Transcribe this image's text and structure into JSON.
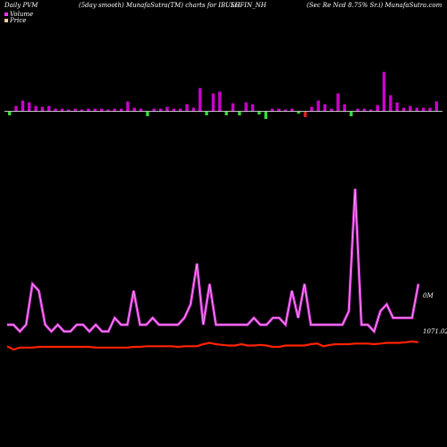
{
  "header": {
    "left": "Daily PVM",
    "center_left": "(5day smooth) MunafaSutra(TM) charts for IBULH",
    "center_right": "SGFIN_NH",
    "right": "(Sec Re   Ncd 8.75% Sr.i) MunafaSutra.com"
  },
  "legend": {
    "volume_label": "Volume",
    "price_label": "Price",
    "volume_color": "#ff33ff",
    "price_color": "#ffcc99"
  },
  "readouts": {
    "volume_value": "0M",
    "price_value": "1071.02"
  },
  "colors": {
    "background": "#000000",
    "bar_up": "#cc00cc",
    "bar_down": "#33dd33",
    "bar_red": "#dd2222",
    "volume_line": "#cc33cc",
    "volume_line_highlight": "#ffaaff",
    "price_line": "#ff2200",
    "baseline": "#ffffff"
  },
  "chart_data": {
    "type": "line",
    "series": [
      {
        "name": "Volume",
        "values": [
          3,
          3,
          2,
          3,
          9,
          8,
          3,
          2,
          3,
          2,
          2,
          3,
          3,
          2,
          3,
          2,
          2,
          4,
          3,
          3,
          8,
          3,
          3,
          4,
          3,
          3,
          3,
          3,
          4,
          6,
          12,
          3,
          9,
          3,
          3,
          3,
          3,
          3,
          3,
          4,
          3,
          3,
          4,
          4,
          3,
          8,
          4,
          9,
          3,
          3,
          3,
          3,
          3,
          3,
          5,
          23,
          3,
          3,
          2,
          5,
          6,
          4,
          4,
          4,
          4,
          9
        ]
      },
      {
        "name": "Price",
        "values": [
          1065,
          1060,
          1063,
          1063,
          1063,
          1064,
          1064,
          1064,
          1064,
          1064,
          1064,
          1064,
          1064,
          1064,
          1063,
          1063,
          1063,
          1063,
          1063,
          1063,
          1064,
          1064,
          1065,
          1065,
          1065,
          1065,
          1065,
          1064,
          1065,
          1065,
          1065,
          1068,
          1070,
          1068,
          1067,
          1066,
          1066,
          1068,
          1066,
          1066,
          1067,
          1066,
          1064,
          1064,
          1066,
          1066,
          1066,
          1066,
          1068,
          1069,
          1065,
          1067,
          1068,
          1068,
          1068,
          1069,
          1069,
          1069,
          1068,
          1069,
          1070,
          1070,
          1070,
          1071,
          1072,
          1071
        ]
      }
    ],
    "bars": [
      {
        "h": 4,
        "dir": "down"
      },
      {
        "h": 6,
        "dir": "up"
      },
      {
        "h": 12,
        "dir": "up"
      },
      {
        "h": 10,
        "dir": "up"
      },
      {
        "h": 6,
        "dir": "up"
      },
      {
        "h": 5,
        "dir": "up"
      },
      {
        "h": 6,
        "dir": "up"
      },
      {
        "h": 3,
        "dir": "up"
      },
      {
        "h": 3,
        "dir": "up"
      },
      {
        "h": 2,
        "dir": "up"
      },
      {
        "h": 3,
        "dir": "up"
      },
      {
        "h": 2,
        "dir": "up"
      },
      {
        "h": 3,
        "dir": "up"
      },
      {
        "h": 3,
        "dir": "up"
      },
      {
        "h": 3,
        "dir": "up"
      },
      {
        "h": 2,
        "dir": "up"
      },
      {
        "h": 3,
        "dir": "up"
      },
      {
        "h": 3,
        "dir": "up"
      },
      {
        "h": 11,
        "dir": "up"
      },
      {
        "h": 4,
        "dir": "up"
      },
      {
        "h": 3,
        "dir": "up"
      },
      {
        "h": 5,
        "dir": "down"
      },
      {
        "h": 3,
        "dir": "up"
      },
      {
        "h": 3,
        "dir": "up"
      },
      {
        "h": 5,
        "dir": "up"
      },
      {
        "h": 3,
        "dir": "up"
      },
      {
        "h": 3,
        "dir": "up"
      },
      {
        "h": 8,
        "dir": "up"
      },
      {
        "h": 4,
        "dir": "up"
      },
      {
        "h": 26,
        "dir": "up"
      },
      {
        "h": 4,
        "dir": "down"
      },
      {
        "h": 20,
        "dir": "up"
      },
      {
        "h": 22,
        "dir": "up"
      },
      {
        "h": 4,
        "dir": "down"
      },
      {
        "h": 9,
        "dir": "up"
      },
      {
        "h": 4,
        "dir": "down"
      },
      {
        "h": 10,
        "dir": "up"
      },
      {
        "h": 8,
        "dir": "up"
      },
      {
        "h": 3,
        "dir": "down"
      },
      {
        "h": 8,
        "dir": "down"
      },
      {
        "h": 3,
        "dir": "up"
      },
      {
        "h": 3,
        "dir": "up"
      },
      {
        "h": 2,
        "dir": "up"
      },
      {
        "h": 3,
        "dir": "up"
      },
      {
        "h": 2,
        "dir": "down"
      },
      {
        "h": 6,
        "dir": "red"
      },
      {
        "h": 5,
        "dir": "up"
      },
      {
        "h": 12,
        "dir": "up"
      },
      {
        "h": 8,
        "dir": "up"
      },
      {
        "h": 3,
        "dir": "up"
      },
      {
        "h": 20,
        "dir": "up"
      },
      {
        "h": 8,
        "dir": "up"
      },
      {
        "h": 5,
        "dir": "down"
      },
      {
        "h": 3,
        "dir": "up"
      },
      {
        "h": 3,
        "dir": "up"
      },
      {
        "h": 2,
        "dir": "up"
      },
      {
        "h": 7,
        "dir": "up"
      },
      {
        "h": 44,
        "dir": "up"
      },
      {
        "h": 18,
        "dir": "up"
      },
      {
        "h": 10,
        "dir": "up"
      },
      {
        "h": 4,
        "dir": "up"
      },
      {
        "h": 6,
        "dir": "up"
      },
      {
        "h": 4,
        "dir": "up"
      },
      {
        "h": 4,
        "dir": "up"
      },
      {
        "h": 4,
        "dir": "up"
      },
      {
        "h": 11,
        "dir": "up"
      }
    ],
    "xlabel": "",
    "ylabel": "",
    "grid": false,
    "legend": "top-left"
  }
}
